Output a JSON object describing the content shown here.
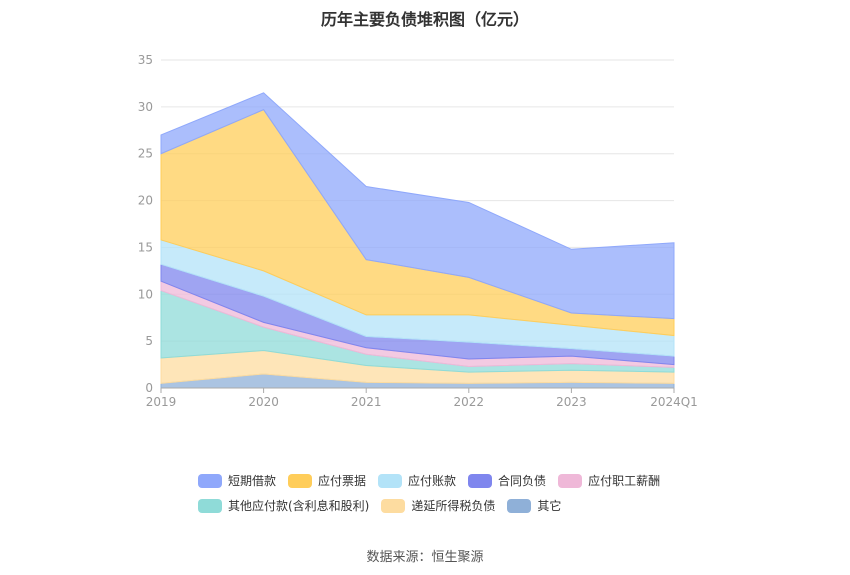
{
  "chart_data": {
    "type": "area",
    "stacked": true,
    "title": "历年主要负债堆积图（亿元）",
    "categories": [
      "2019",
      "2020",
      "2021",
      "2022",
      "2023",
      "2024Q1"
    ],
    "ylim": [
      0,
      35
    ],
    "yticks": [
      0,
      5,
      10,
      15,
      20,
      25,
      30,
      35
    ],
    "grid": true,
    "legend_position": "bottom",
    "series": [
      {
        "name": "其它",
        "color": "#8fb0d8",
        "values": [
          0.5,
          1.5,
          0.6,
          0.5,
          0.6,
          0.5
        ]
      },
      {
        "name": "递延所得税负债",
        "color": "#fddca0",
        "values": [
          2.7,
          2.5,
          1.8,
          1.2,
          1.3,
          1.2
        ]
      },
      {
        "name": "其他应付款(含利息和股利)",
        "color": "#8fdbd8",
        "values": [
          7.2,
          2.5,
          1.2,
          0.6,
          0.7,
          0.5
        ]
      },
      {
        "name": "应付职工薪酬",
        "color": "#efb8d8",
        "values": [
          1.0,
          0.5,
          0.7,
          0.8,
          0.8,
          0.3
        ]
      },
      {
        "name": "合同负债",
        "color": "#7f86ee",
        "values": [
          1.8,
          2.8,
          1.2,
          1.8,
          0.8,
          0.9
        ]
      },
      {
        "name": "应付账款",
        "color": "#b3e3f8",
        "values": [
          2.6,
          2.7,
          2.3,
          2.9,
          2.5,
          2.2
        ]
      },
      {
        "name": "应付票据",
        "color": "#ffcd5a",
        "values": [
          9.2,
          17.2,
          5.9,
          4.0,
          1.3,
          1.8
        ]
      },
      {
        "name": "短期借款",
        "color": "#8fa8fb",
        "values": [
          2.0,
          1.8,
          7.8,
          8.0,
          6.8,
          8.1
        ]
      }
    ]
  },
  "legend_rows": [
    [
      "短期借款",
      "应付票据",
      "应付账款",
      "合同负债",
      "应付职工薪酬"
    ],
    [
      "其他应付款(含利息和股利)",
      "递延所得税负债",
      "其它"
    ]
  ],
  "legend_colors": {
    "短期借款": "#8fa8fb",
    "应付票据": "#ffcd5a",
    "应付账款": "#b3e3f8",
    "合同负债": "#7f86ee",
    "应付职工薪酬": "#efb8d8",
    "其他应付款(含利息和股利)": "#8fdbd8",
    "递延所得税负债": "#fddca0",
    "其它": "#8fb0d8"
  },
  "source": "数据来源：恒生聚源"
}
